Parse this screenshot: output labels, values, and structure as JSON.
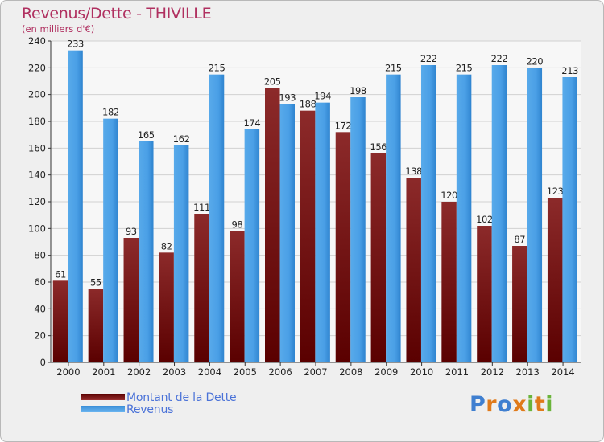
{
  "chart_data": {
    "type": "bar",
    "title": "Revenus/Dette - THIVILLE",
    "subtitle": "(en milliers d'€)",
    "categories": [
      "2000",
      "2001",
      "2002",
      "2003",
      "2004",
      "2005",
      "2006",
      "2007",
      "2008",
      "2009",
      "2010",
      "2011",
      "2012",
      "2013",
      "2014"
    ],
    "series": [
      {
        "name": "Montant de la Dette",
        "color": "#7a1a1a",
        "values": [
          61,
          55,
          93,
          82,
          111,
          98,
          205,
          188,
          172,
          156,
          138,
          120,
          102,
          87,
          123
        ]
      },
      {
        "name": "Revenus",
        "color": "#4a9fe6",
        "values": [
          233,
          182,
          165,
          162,
          215,
          174,
          193,
          194,
          198,
          215,
          222,
          215,
          222,
          220,
          213
        ]
      }
    ],
    "ylim": [
      0,
      240
    ],
    "yticks": [
      0,
      20,
      40,
      60,
      80,
      100,
      120,
      140,
      160,
      180,
      200,
      220,
      240
    ],
    "grid": true,
    "legend": "bottom-left"
  },
  "logo": {
    "letters": [
      {
        "ch": "P",
        "color": "#3f7fd0"
      },
      {
        "ch": "r",
        "color": "#e07a1a"
      },
      {
        "ch": "o",
        "color": "#3f7fd0"
      },
      {
        "ch": "x",
        "color": "#e07a1a"
      },
      {
        "ch": "i",
        "color": "#6ab43a"
      },
      {
        "ch": "t",
        "color": "#e07a1a"
      },
      {
        "ch": "i",
        "color": "#6ab43a"
      }
    ]
  }
}
